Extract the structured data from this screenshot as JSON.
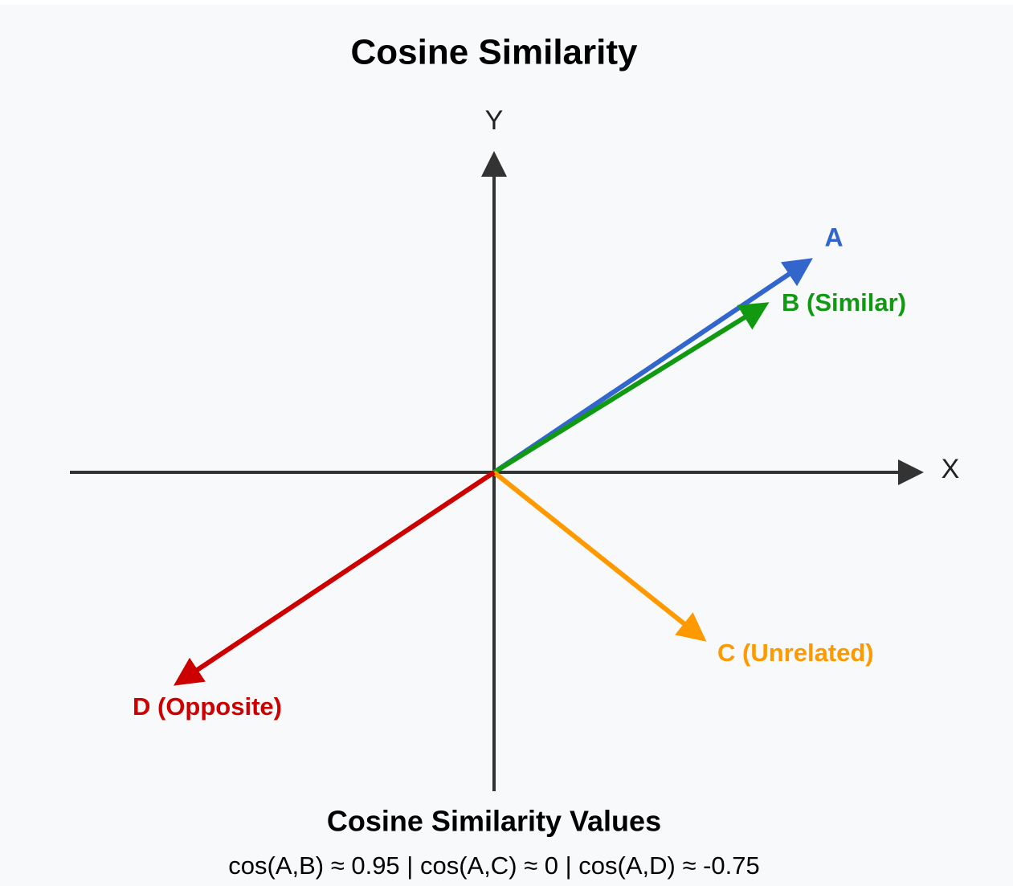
{
  "title": "Cosine Similarity",
  "axes": {
    "x": "X",
    "y": "Y"
  },
  "vectors": [
    {
      "label": "A"
    },
    {
      "label": "B (Similar)"
    },
    {
      "label": "C (Unrelated)"
    },
    {
      "label": "D (Opposite)"
    }
  ],
  "footer": {
    "title": "Cosine Similarity Values",
    "values": "cos(A,B) ≈ 0.95 | cos(A,C) ≈ 0 | cos(A,D) ≈ -0.75"
  }
}
